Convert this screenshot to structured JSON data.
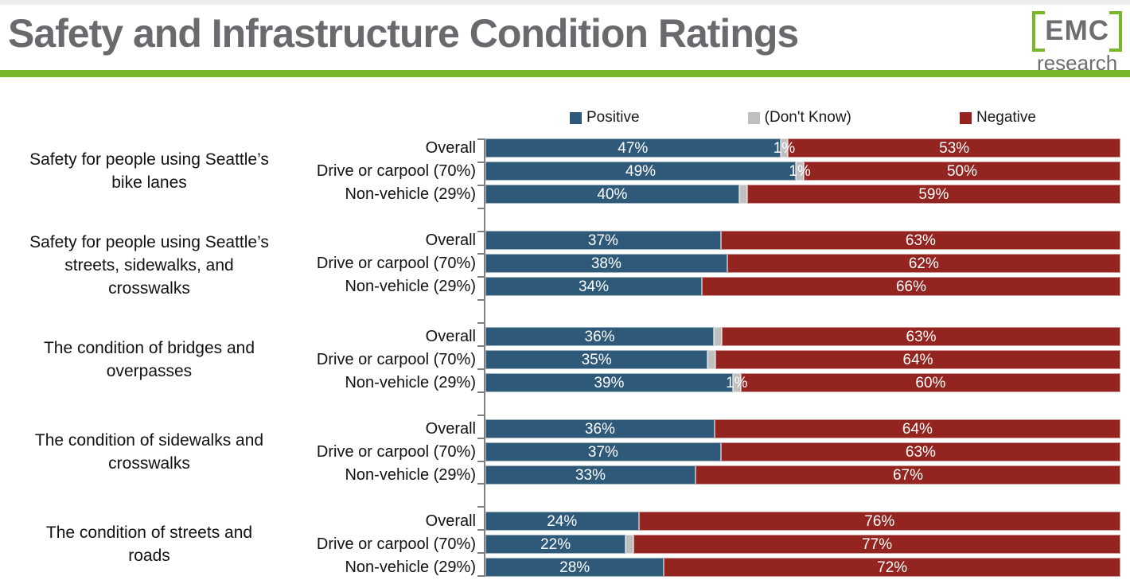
{
  "page": {
    "title": "Safety and Infrastructure Condition Ratings"
  },
  "logo": {
    "name": "EMC",
    "subtitle": "research"
  },
  "colors": {
    "positive": "#2E5978",
    "dont_know": "#BFBFBF",
    "negative": "#94241F",
    "accent_green": "#76B82A",
    "title_gray": "#696A6D",
    "logo_gray": "#6D6E71",
    "axis_gray": "#808080"
  },
  "legend": {
    "items": [
      {
        "key": "positive",
        "label": "Positive"
      },
      {
        "key": "dont_know",
        "label": "(Don't Know)"
      },
      {
        "key": "negative",
        "label": "Negative"
      }
    ]
  },
  "chart_data": {
    "type": "bar",
    "orientation": "horizontal",
    "stacked": true,
    "title": "Safety and Infrastructure Condition Ratings",
    "value_unit": "%",
    "x_range": [
      0,
      100
    ],
    "legend": [
      "Positive",
      "(Don't Know)",
      "Negative"
    ],
    "series_keys": [
      "positive",
      "dont_know",
      "negative"
    ],
    "row_categories": [
      "Overall",
      "Drive or carpool (70%)",
      "Non-vehicle (29%)"
    ],
    "groups": [
      {
        "label": "Safety for people using Seattle’s bike lanes",
        "rows": [
          {
            "label": "Overall",
            "positive": 47,
            "dont_know": 1,
            "negative": 53,
            "labels": {
              "positive": "47%",
              "dont_know": "1%",
              "negative": "53%"
            }
          },
          {
            "label": "Drive or carpool (70%)",
            "positive": 49,
            "dont_know": 1,
            "negative": 50,
            "labels": {
              "positive": "49%",
              "dont_know": "1%",
              "negative": "50%"
            }
          },
          {
            "label": "Non-vehicle (29%)",
            "positive": 40,
            "dont_know": 1,
            "negative": 59,
            "labels": {
              "positive": "40%",
              "dont_know": null,
              "negative": "59%"
            }
          }
        ]
      },
      {
        "label": "Safety for people using Seattle’s streets, sidewalks, and crosswalks",
        "rows": [
          {
            "label": "Overall",
            "positive": 37,
            "dont_know": 0,
            "negative": 63,
            "labels": {
              "positive": "37%",
              "dont_know": null,
              "negative": "63%"
            }
          },
          {
            "label": "Drive or carpool (70%)",
            "positive": 38,
            "dont_know": 0,
            "negative": 62,
            "labels": {
              "positive": "38%",
              "dont_know": null,
              "negative": "62%"
            }
          },
          {
            "label": "Non-vehicle (29%)",
            "positive": 34,
            "dont_know": 0,
            "negative": 66,
            "labels": {
              "positive": "34%",
              "dont_know": null,
              "negative": "66%"
            }
          }
        ]
      },
      {
        "label": "The condition of bridges and overpasses",
        "rows": [
          {
            "label": "Overall",
            "positive": 36,
            "dont_know": 1,
            "negative": 63,
            "labels": {
              "positive": "36%",
              "dont_know": null,
              "negative": "63%"
            }
          },
          {
            "label": "Drive or carpool (70%)",
            "positive": 35,
            "dont_know": 1,
            "negative": 64,
            "labels": {
              "positive": "35%",
              "dont_know": null,
              "negative": "64%"
            }
          },
          {
            "label": "Non-vehicle (29%)",
            "positive": 39,
            "dont_know": 1,
            "negative": 60,
            "labels": {
              "positive": "39%",
              "dont_know": "1%",
              "negative": "60%"
            }
          }
        ]
      },
      {
        "label": "The condition of sidewalks and crosswalks",
        "rows": [
          {
            "label": "Overall",
            "positive": 36,
            "dont_know": 0,
            "negative": 64,
            "labels": {
              "positive": "36%",
              "dont_know": null,
              "negative": "64%"
            }
          },
          {
            "label": "Drive or carpool (70%)",
            "positive": 37,
            "dont_know": 0,
            "negative": 63,
            "labels": {
              "positive": "37%",
              "dont_know": null,
              "negative": "63%"
            }
          },
          {
            "label": "Non-vehicle (29%)",
            "positive": 33,
            "dont_know": 0,
            "negative": 67,
            "labels": {
              "positive": "33%",
              "dont_know": null,
              "negative": "67%"
            }
          }
        ]
      },
      {
        "label": "The condition of streets and roads",
        "rows": [
          {
            "label": "Overall",
            "positive": 24,
            "dont_know": 0,
            "negative": 76,
            "labels": {
              "positive": "24%",
              "dont_know": null,
              "negative": "76%"
            }
          },
          {
            "label": "Drive or carpool (70%)",
            "positive": 22,
            "dont_know": 1,
            "negative": 77,
            "labels": {
              "positive": "22%",
              "dont_know": null,
              "negative": "77%"
            }
          },
          {
            "label": "Non-vehicle (29%)",
            "positive": 28,
            "dont_know": 0,
            "negative": 72,
            "labels": {
              "positive": "28%",
              "dont_know": null,
              "negative": "72%"
            }
          }
        ]
      }
    ]
  }
}
